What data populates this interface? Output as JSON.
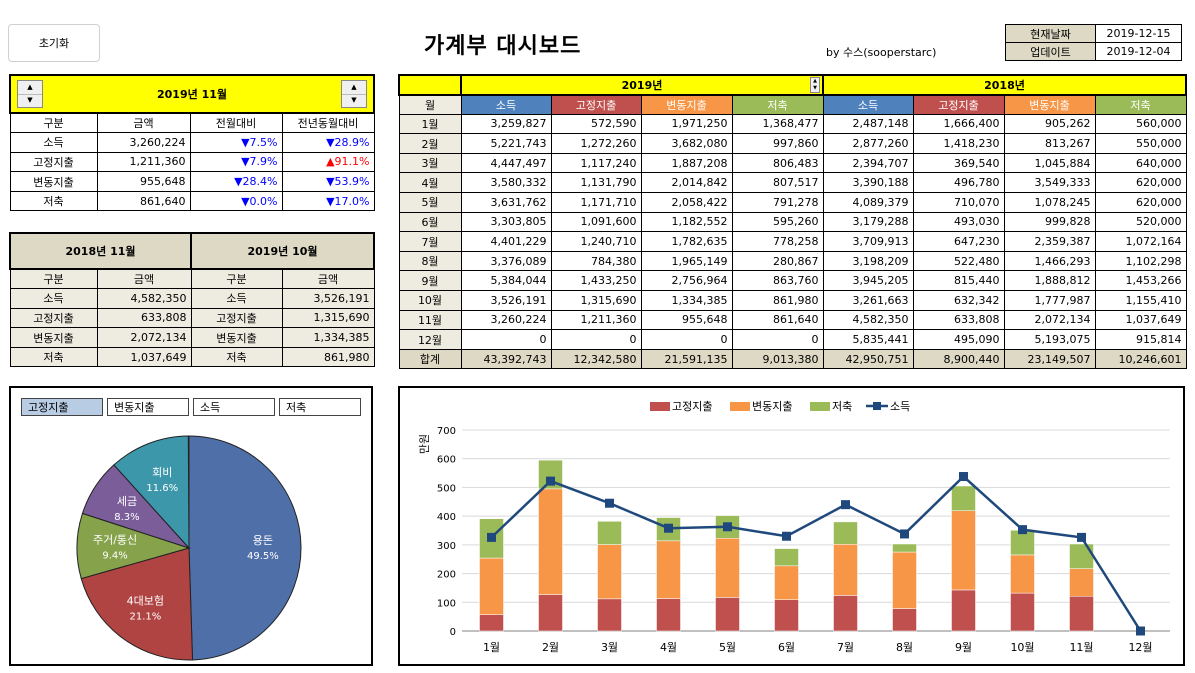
{
  "header": {
    "reset_label": "초기화",
    "title": "가계부 대시보드",
    "byline": "by 수스(sooperstarc)",
    "current_date_label": "현재날짜",
    "current_date": "2019-12-15",
    "update_label": "업데이트",
    "update_date": "2019-12-04"
  },
  "summary": {
    "month_title": "2019년 11월",
    "cols": [
      "구분",
      "금액",
      "전월대비",
      "전년동월대비"
    ],
    "rows": [
      {
        "label": "소득",
        "amount": "3,260,224",
        "mom": "▼7.5%",
        "mom_dir": "down",
        "yoy": "▼28.9%",
        "yoy_dir": "down"
      },
      {
        "label": "고정지출",
        "amount": "1,211,360",
        "mom": "▼7.9%",
        "mom_dir": "down",
        "yoy": "▲91.1%",
        "yoy_dir": "up"
      },
      {
        "label": "변동지출",
        "amount": "955,648",
        "mom": "▼28.4%",
        "mom_dir": "down",
        "yoy": "▼53.9%",
        "yoy_dir": "down"
      },
      {
        "label": "저축",
        "amount": "861,640",
        "mom": "▼0.0%",
        "mom_dir": "down",
        "yoy": "▼17.0%",
        "yoy_dir": "down"
      }
    ]
  },
  "compare": {
    "left_title": "2018년 11월",
    "right_title": "2019년 10월",
    "cols": [
      "구분",
      "금액",
      "구분",
      "금액"
    ],
    "rows": [
      {
        "l_label": "소득",
        "l_amount": "4,582,350",
        "r_label": "소득",
        "r_amount": "3,526,191"
      },
      {
        "l_label": "고정지출",
        "l_amount": "633,808",
        "r_label": "고정지출",
        "r_amount": "1,315,690"
      },
      {
        "l_label": "변동지출",
        "l_amount": "2,072,134",
        "r_label": "변동지출",
        "r_amount": "1,334,385"
      },
      {
        "l_label": "저축",
        "l_amount": "1,037,649",
        "r_label": "저축",
        "r_amount": "861,980"
      }
    ]
  },
  "monthly": {
    "year_a": "2019년",
    "year_b": "2018년",
    "month_col": "월",
    "cols": [
      "소득",
      "고정지출",
      "변동지출",
      "저축"
    ],
    "total_label": "합계",
    "rows": [
      {
        "m": "1월",
        "a": [
          "3,259,827",
          "572,590",
          "1,971,250",
          "1,368,477"
        ],
        "b": [
          "2,487,148",
          "1,666,400",
          "905,262",
          "560,000"
        ]
      },
      {
        "m": "2월",
        "a": [
          "5,221,743",
          "1,272,260",
          "3,682,080",
          "997,860"
        ],
        "b": [
          "2,877,260",
          "1,418,230",
          "813,267",
          "550,000"
        ]
      },
      {
        "m": "3월",
        "a": [
          "4,447,497",
          "1,117,240",
          "1,887,208",
          "806,483"
        ],
        "b": [
          "2,394,707",
          "369,540",
          "1,045,884",
          "640,000"
        ]
      },
      {
        "m": "4월",
        "a": [
          "3,580,332",
          "1,131,790",
          "2,014,842",
          "807,517"
        ],
        "b": [
          "3,390,188",
          "496,780",
          "3,549,333",
          "620,000"
        ]
      },
      {
        "m": "5월",
        "a": [
          "3,631,762",
          "1,171,710",
          "2,058,422",
          "791,278"
        ],
        "b": [
          "4,089,379",
          "710,070",
          "1,078,245",
          "620,000"
        ]
      },
      {
        "m": "6월",
        "a": [
          "3,303,805",
          "1,091,600",
          "1,182,552",
          "595,260"
        ],
        "b": [
          "3,179,288",
          "493,030",
          "999,828",
          "520,000"
        ]
      },
      {
        "m": "7월",
        "a": [
          "4,401,229",
          "1,240,710",
          "1,782,635",
          "778,258"
        ],
        "b": [
          "3,709,913",
          "647,230",
          "2,359,387",
          "1,072,164"
        ]
      },
      {
        "m": "8월",
        "a": [
          "3,376,089",
          "784,380",
          "1,965,149",
          "280,867"
        ],
        "b": [
          "3,198,209",
          "522,480",
          "1,466,293",
          "1,102,298"
        ]
      },
      {
        "m": "9월",
        "a": [
          "5,384,044",
          "1,433,250",
          "2,756,964",
          "863,760"
        ],
        "b": [
          "3,945,205",
          "815,440",
          "1,888,812",
          "1,453,266"
        ]
      },
      {
        "m": "10월",
        "a": [
          "3,526,191",
          "1,315,690",
          "1,334,385",
          "861,980"
        ],
        "b": [
          "3,261,663",
          "632,342",
          "1,777,987",
          "1,155,410"
        ]
      },
      {
        "m": "11월",
        "a": [
          "3,260,224",
          "1,211,360",
          "955,648",
          "861,640"
        ],
        "b": [
          "4,582,350",
          "633,808",
          "2,072,134",
          "1,037,649"
        ]
      },
      {
        "m": "12월",
        "a": [
          "0",
          "0",
          "0",
          "0"
        ],
        "b": [
          "5,835,441",
          "495,090",
          "5,193,075",
          "915,814"
        ]
      }
    ],
    "total_a": [
      "43,392,743",
      "12,342,580",
      "21,591,135",
      "9,013,380"
    ],
    "total_b": [
      "42,950,751",
      "8,900,440",
      "23,149,507",
      "10,246,601"
    ]
  },
  "colors": {
    "income": "#4f81bd",
    "fixed": "#c0504d",
    "variable": "#f79646",
    "saving": "#9bbb59",
    "line": "#1f497d"
  },
  "chart_data": [
    {
      "type": "pie",
      "tabs": [
        "고정지출",
        "변동지출",
        "소득",
        "저축"
      ],
      "active_tab": "고정지출",
      "slices": [
        {
          "label": "용돈",
          "pct": 49.5,
          "pct_label": "49.5%",
          "color": "#4f6fa8"
        },
        {
          "label": "4대보험",
          "pct": 21.1,
          "pct_label": "21.1%",
          "color": "#b04442"
        },
        {
          "label": "주거/통신",
          "pct": 9.4,
          "pct_label": "9.4%",
          "color": "#86a34c"
        },
        {
          "label": "세금",
          "pct": 8.3,
          "pct_label": "8.3%",
          "color": "#7a5d99"
        },
        {
          "label": "회비",
          "pct": 11.6,
          "pct_label": "11.6%",
          "color": "#3d97ab"
        }
      ]
    },
    {
      "type": "bar",
      "stacked": true,
      "ylabel": "만원",
      "ylim": [
        0,
        700
      ],
      "yticks": [
        0,
        100,
        200,
        300,
        400,
        500,
        600,
        700
      ],
      "grid": true,
      "legend": "top",
      "categories": [
        "1월",
        "2월",
        "3월",
        "4월",
        "5월",
        "6월",
        "7월",
        "8월",
        "9월",
        "10월",
        "11월",
        "12월"
      ],
      "series": [
        {
          "name": "고정지출",
          "kind": "bar",
          "color": "#c0504d",
          "values": [
            57,
            127,
            112,
            113,
            117,
            109,
            124,
            78,
            143,
            132,
            121,
            0
          ]
        },
        {
          "name": "변동지출",
          "kind": "bar",
          "color": "#f79646",
          "values": [
            197,
            368,
            189,
            201,
            206,
            118,
            178,
            197,
            276,
            133,
            96,
            0
          ]
        },
        {
          "name": "저축",
          "kind": "bar",
          "color": "#9bbb59",
          "values": [
            137,
            100,
            81,
            81,
            79,
            60,
            78,
            28,
            86,
            86,
            86,
            0
          ]
        },
        {
          "name": "소득",
          "kind": "line",
          "color": "#1f497d",
          "values": [
            326,
            522,
            445,
            358,
            363,
            330,
            440,
            338,
            538,
            353,
            326,
            0
          ]
        }
      ]
    }
  ]
}
